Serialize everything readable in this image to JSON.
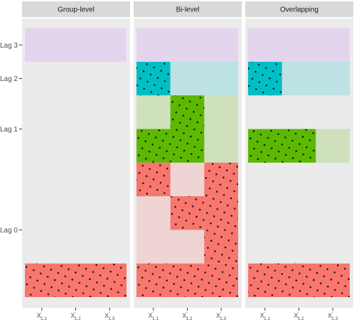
{
  "chart_data": {
    "type": "heatmap",
    "title": "",
    "xlabel": "",
    "ylabel": "",
    "panels": [
      "Group-level",
      "Bi-level",
      "Overlapping"
    ],
    "y_ticks": [
      {
        "label": "Lag 3",
        "row": 7
      },
      {
        "label": "Lag 2",
        "row": 6
      },
      {
        "label": "Lag 1",
        "row": 4.5
      },
      {
        "label": "Lag 0",
        "row": 1.5
      }
    ],
    "x_ticks": [
      {
        "base": "X",
        "sup": "'",
        "sub": "1,1"
      },
      {
        "base": "X",
        "sup": "'",
        "sub": "1,2"
      },
      {
        "base": "X",
        "sup": "'",
        "sub": "1,3"
      }
    ],
    "lag_colors": {
      "lag0": "#f8766d",
      "lag1": "#5cb800",
      "lag2": "#00bfc4",
      "lag3": "#c77cff"
    },
    "note": "Each tile = one predictor (col 1-3) × lag row (0-7). selected=true means dotted, fully colored tile; false = faded fill.",
    "tiles": [
      {
        "panel": 0,
        "col": 1,
        "row": 7,
        "span": 3,
        "lag": "lag3",
        "selected": false
      },
      {
        "panel": 0,
        "col": 1,
        "row": 0,
        "span": 3,
        "lag": "lag0",
        "selected": true
      },
      {
        "panel": 1,
        "col": 1,
        "row": 7,
        "span": 3,
        "lag": "lag3",
        "selected": false
      },
      {
        "panel": 1,
        "col": 1,
        "row": 6,
        "span": 1,
        "lag": "lag2",
        "selected": true
      },
      {
        "panel": 1,
        "col": 2,
        "row": 6,
        "span": 2,
        "lag": "lag2",
        "selected": false
      },
      {
        "panel": 1,
        "col": 1,
        "row": 5,
        "span": 1,
        "lag": "lag1",
        "selected": false
      },
      {
        "panel": 1,
        "col": 2,
        "row": 5,
        "span": 1,
        "lag": "lag1",
        "selected": true
      },
      {
        "panel": 1,
        "col": 3,
        "row": 5,
        "span": 1,
        "lag": "lag1",
        "selected": false
      },
      {
        "panel": 1,
        "col": 1,
        "row": 4,
        "span": 1,
        "lag": "lag1",
        "selected": true
      },
      {
        "panel": 1,
        "col": 2,
        "row": 4,
        "span": 1,
        "lag": "lag1",
        "selected": true
      },
      {
        "panel": 1,
        "col": 3,
        "row": 4,
        "span": 1,
        "lag": "lag1",
        "selected": false
      },
      {
        "panel": 1,
        "col": 1,
        "row": 3,
        "span": 1,
        "lag": "lag0",
        "selected": true
      },
      {
        "panel": 1,
        "col": 2,
        "row": 3,
        "span": 1,
        "lag": "lag0",
        "selected": false
      },
      {
        "panel": 1,
        "col": 3,
        "row": 3,
        "span": 1,
        "lag": "lag0",
        "selected": true
      },
      {
        "panel": 1,
        "col": 1,
        "row": 2,
        "span": 1,
        "lag": "lag0",
        "selected": false
      },
      {
        "panel": 1,
        "col": 2,
        "row": 2,
        "span": 1,
        "lag": "lag0",
        "selected": true
      },
      {
        "panel": 1,
        "col": 3,
        "row": 2,
        "span": 1,
        "lag": "lag0",
        "selected": true
      },
      {
        "panel": 1,
        "col": 1,
        "row": 1,
        "span": 1,
        "lag": "lag0",
        "selected": false
      },
      {
        "panel": 1,
        "col": 2,
        "row": 1,
        "span": 1,
        "lag": "lag0",
        "selected": false
      },
      {
        "panel": 1,
        "col": 3,
        "row": 1,
        "span": 1,
        "lag": "lag0",
        "selected": true
      },
      {
        "panel": 1,
        "col": 1,
        "row": 0,
        "span": 3,
        "lag": "lag0",
        "selected": true
      },
      {
        "panel": 2,
        "col": 1,
        "row": 7,
        "span": 3,
        "lag": "lag3",
        "selected": false
      },
      {
        "panel": 2,
        "col": 1,
        "row": 6,
        "span": 1,
        "lag": "lag2",
        "selected": true
      },
      {
        "panel": 2,
        "col": 2,
        "row": 6,
        "span": 2,
        "lag": "lag2",
        "selected": false
      },
      {
        "panel": 2,
        "col": 1,
        "row": 4,
        "span": 2,
        "lag": "lag1",
        "selected": true
      },
      {
        "panel": 2,
        "col": 3,
        "row": 4,
        "span": 1,
        "lag": "lag1",
        "selected": false
      },
      {
        "panel": 2,
        "col": 1,
        "row": 0,
        "span": 3,
        "lag": "lag0",
        "selected": true
      }
    ]
  }
}
